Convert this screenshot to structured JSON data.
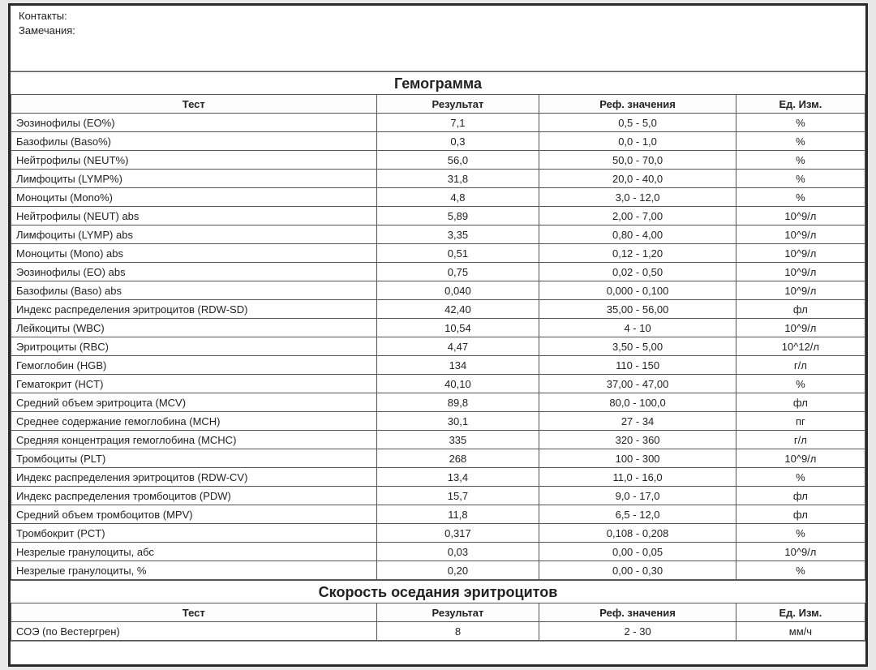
{
  "meta": {
    "contacts_label": "Контакты:",
    "notes_label": "Замечания:"
  },
  "section1": {
    "title": "Гемограмма",
    "columns": {
      "test": "Тест",
      "result": "Результат",
      "ref": "Реф. значения",
      "unit": "Ед. Изм."
    },
    "rows": [
      {
        "test": "Эозинофилы (EO%)",
        "result": "7,1",
        "ref": "0,5 - 5,0",
        "unit": "%"
      },
      {
        "test": "Базофилы (Baso%)",
        "result": "0,3",
        "ref": "0,0 - 1,0",
        "unit": "%"
      },
      {
        "test": "Нейтрофилы (NEUT%)",
        "result": "56,0",
        "ref": "50,0 - 70,0",
        "unit": "%"
      },
      {
        "test": "Лимфоциты (LYMP%)",
        "result": "31,8",
        "ref": "20,0 - 40,0",
        "unit": "%"
      },
      {
        "test": "Моноциты (Mono%)",
        "result": "4,8",
        "ref": "3,0 - 12,0",
        "unit": "%"
      },
      {
        "test": "Нейтрофилы (NEUT) abs",
        "result": "5,89",
        "ref": "2,00 - 7,00",
        "unit": "10^9/л"
      },
      {
        "test": "Лимфоциты (LYMP) abs",
        "result": "3,35",
        "ref": "0,80 - 4,00",
        "unit": "10^9/л"
      },
      {
        "test": "Моноциты (Mono) abs",
        "result": "0,51",
        "ref": "0,12 - 1,20",
        "unit": "10^9/л"
      },
      {
        "test": "Эозинофилы (EO) abs",
        "result": "0,75",
        "ref": "0,02 - 0,50",
        "unit": "10^9/л"
      },
      {
        "test": "Базофилы (Baso) abs",
        "result": "0,040",
        "ref": "0,000 - 0,100",
        "unit": "10^9/л"
      },
      {
        "test": "Индекс распределения эритроцитов (RDW-SD)",
        "result": "42,40",
        "ref": "35,00 - 56,00",
        "unit": "фл"
      },
      {
        "test": "Лейкоциты (WBC)",
        "result": "10,54",
        "ref": "4 - 10",
        "unit": "10^9/л"
      },
      {
        "test": "Эритроциты (RBC)",
        "result": "4,47",
        "ref": "3,50 - 5,00",
        "unit": "10^12/л"
      },
      {
        "test": "Гемоглобин (HGB)",
        "result": "134",
        "ref": "110 - 150",
        "unit": "г/л"
      },
      {
        "test": "Гематокрит (HCT)",
        "result": "40,10",
        "ref": "37,00 - 47,00",
        "unit": "%"
      },
      {
        "test": "Средний объем эритроцита (MCV)",
        "result": "89,8",
        "ref": "80,0 - 100,0",
        "unit": "фл"
      },
      {
        "test": "Среднее содержание гемоглобина (MCH)",
        "result": "30,1",
        "ref": "27 - 34",
        "unit": "пг"
      },
      {
        "test": "Средняя концентрация гемоглобина (MCHC)",
        "result": "335",
        "ref": "320 - 360",
        "unit": "г/л"
      },
      {
        "test": "Тромбоциты (PLT)",
        "result": "268",
        "ref": "100 - 300",
        "unit": "10^9/л"
      },
      {
        "test": "Индекс распределения эритроцитов (RDW-CV)",
        "result": "13,4",
        "ref": "11,0 - 16,0",
        "unit": "%"
      },
      {
        "test": "Индекс распределения тромбоцитов (PDW)",
        "result": "15,7",
        "ref": "9,0 - 17,0",
        "unit": "фл"
      },
      {
        "test": "Средний объем тромбоцитов (MPV)",
        "result": "11,8",
        "ref": "6,5 - 12,0",
        "unit": "фл"
      },
      {
        "test": "Тромбокрит (PCT)",
        "result": "0,317",
        "ref": "0,108 - 0,208",
        "unit": "%"
      },
      {
        "test": "Незрелые гранулоциты, абс",
        "result": "0,03",
        "ref": "0,00 - 0,05",
        "unit": "10^9/л"
      },
      {
        "test": "Незрелые гранулоциты, %",
        "result": "0,20",
        "ref": "0,00 - 0,30",
        "unit": "%"
      }
    ]
  },
  "section2": {
    "title": "Скорость оседания эритроцитов",
    "columns": {
      "test": "Тест",
      "result": "Результат",
      "ref": "Реф. значения",
      "unit": "Ед. Изм."
    },
    "rows": [
      {
        "test": "СОЭ (по Вестергрен)",
        "result": "8",
        "ref": "2 - 30",
        "unit": "мм/ч"
      }
    ]
  }
}
